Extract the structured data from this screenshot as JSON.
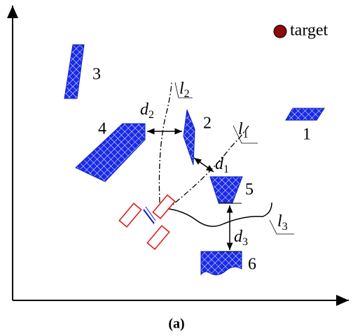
{
  "legend": {
    "label": "target"
  },
  "obstacles": [
    {
      "label": "1"
    },
    {
      "label": "2"
    },
    {
      "label": "3"
    },
    {
      "label": "4"
    },
    {
      "label": "5"
    },
    {
      "label": "6"
    }
  ],
  "paths": [
    {
      "label": "l",
      "subscript": "1"
    },
    {
      "label": "l",
      "subscript": "2"
    },
    {
      "label": "l",
      "subscript": "3"
    }
  ],
  "distances": [
    {
      "label": "d",
      "subscript": "1"
    },
    {
      "label": "d",
      "subscript": "2"
    },
    {
      "label": "d",
      "subscript": "3"
    }
  ],
  "caption": "(a)"
}
